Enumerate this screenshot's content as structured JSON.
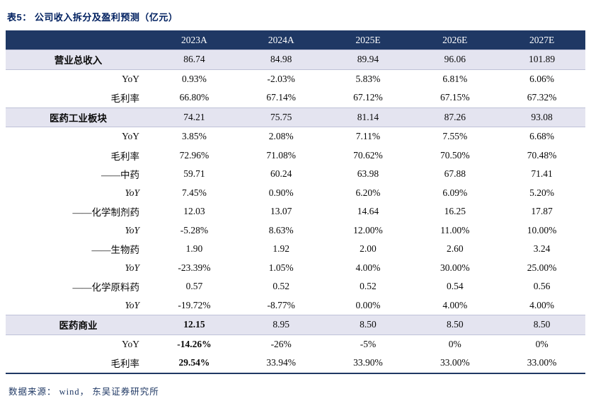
{
  "title": "表5：  公司收入拆分及盈利预测（亿元）",
  "footer": "数据来源：  wind， 东吴证券研究所",
  "colors": {
    "accent_navy": "#1F3864",
    "title_navy": "#002060",
    "section_row_bg": "#E4E4F0",
    "header_text": "#ffffff"
  },
  "table": {
    "columns": [
      "",
      "2023A",
      "2024A",
      "2025E",
      "2026E",
      "2027E"
    ],
    "rows": [
      {
        "label": "营业总收入",
        "type": "section",
        "bold_first": false,
        "values": [
          "86.74",
          "84.98",
          "89.94",
          "96.06",
          "101.89"
        ]
      },
      {
        "label": "YoY",
        "type": "sub",
        "bold_first": false,
        "values": [
          "0.93%",
          "-2.03%",
          "5.83%",
          "6.81%",
          "6.06%"
        ]
      },
      {
        "label": "毛利率",
        "type": "sub",
        "bold_first": false,
        "values": [
          "66.80%",
          "67.14%",
          "67.12%",
          "67.15%",
          "67.32%"
        ]
      },
      {
        "label": "医药工业板块",
        "type": "section",
        "bold_first": false,
        "values": [
          "74.21",
          "75.75",
          "81.14",
          "87.26",
          "93.08"
        ]
      },
      {
        "label": "YoY",
        "type": "sub",
        "bold_first": false,
        "values": [
          "3.85%",
          "2.08%",
          "7.11%",
          "7.55%",
          "6.68%"
        ]
      },
      {
        "label": "毛利率",
        "type": "sub",
        "bold_first": false,
        "values": [
          "72.96%",
          "71.08%",
          "70.62%",
          "70.50%",
          "70.48%"
        ]
      },
      {
        "label": "——中药",
        "type": "item",
        "bold_first": false,
        "values": [
          "59.71",
          "60.24",
          "63.98",
          "67.88",
          "71.41"
        ]
      },
      {
        "label": "YoY",
        "type": "sub-italic",
        "bold_first": false,
        "values": [
          "7.45%",
          "0.90%",
          "6.20%",
          "6.09%",
          "5.20%"
        ]
      },
      {
        "label": "——化学制剂药",
        "type": "item",
        "bold_first": false,
        "values": [
          "12.03",
          "13.07",
          "14.64",
          "16.25",
          "17.87"
        ]
      },
      {
        "label": "YoY",
        "type": "sub-italic",
        "bold_first": false,
        "values": [
          "-5.28%",
          "8.63%",
          "12.00%",
          "11.00%",
          "10.00%"
        ]
      },
      {
        "label": "——生物药",
        "type": "item",
        "bold_first": false,
        "values": [
          "1.90",
          "1.92",
          "2.00",
          "2.60",
          "3.24"
        ]
      },
      {
        "label": "YoY",
        "type": "sub-italic",
        "bold_first": false,
        "values": [
          "-23.39%",
          "1.05%",
          "4.00%",
          "30.00%",
          "25.00%"
        ]
      },
      {
        "label": "——化学原料药",
        "type": "item",
        "bold_first": false,
        "values": [
          "0.57",
          "0.52",
          "0.52",
          "0.54",
          "0.56"
        ]
      },
      {
        "label": "YoY",
        "type": "sub-italic",
        "bold_first": false,
        "values": [
          "-19.72%",
          "-8.77%",
          "0.00%",
          "4.00%",
          "4.00%"
        ]
      },
      {
        "label": "医药商业",
        "type": "section",
        "bold_first": true,
        "values": [
          "12.15",
          "8.95",
          "8.50",
          "8.50",
          "8.50"
        ]
      },
      {
        "label": "YoY",
        "type": "sub",
        "bold_first": true,
        "values": [
          "-14.26%",
          "-26%",
          "-5%",
          "0%",
          "0%"
        ]
      },
      {
        "label": "毛利率",
        "type": "sub",
        "bold_first": true,
        "values": [
          "29.54%",
          "33.94%",
          "33.90%",
          "33.00%",
          "33.00%"
        ]
      }
    ]
  }
}
